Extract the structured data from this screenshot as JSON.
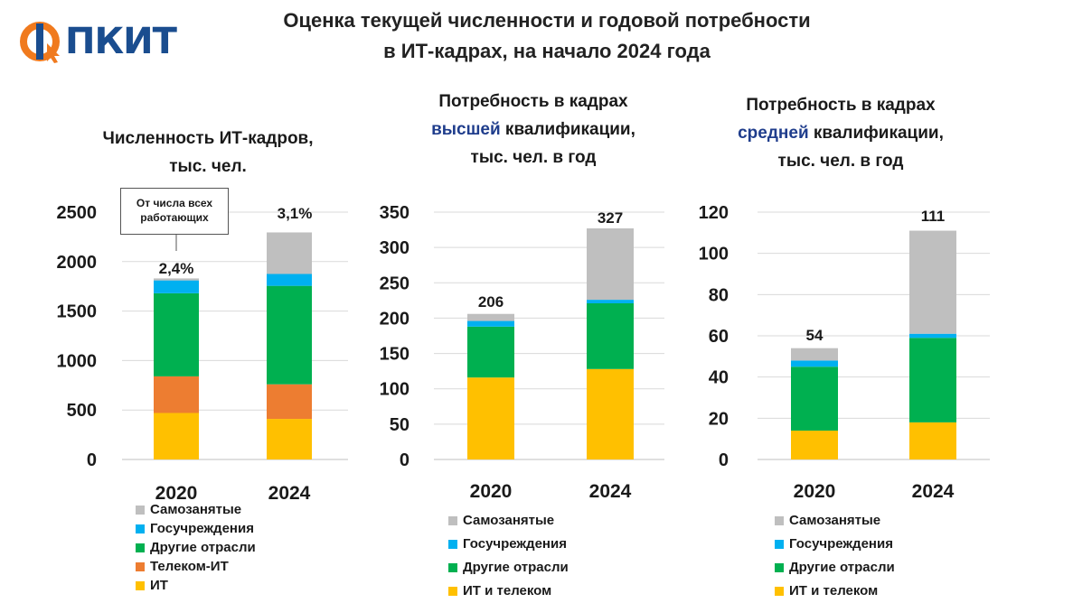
{
  "header": {
    "title_line1": "Оценка текущей численности и годовой потребности",
    "title_line2": "в ИТ-кадрах, на начало 2024 года",
    "logo_text": "ПКИТ"
  },
  "colors": {
    "it": "#FFC000",
    "telecom_it": "#ED7D31",
    "other": "#00B050",
    "gov": "#00B0F0",
    "self": "#BFBFBF",
    "accent": "#1f3d8c",
    "logo_orange": "#F07A1E"
  },
  "panels": {
    "p1": {
      "title_line1": "Численность ИТ-кадров,",
      "title_line2": "тыс. чел."
    },
    "p2": {
      "title_line1": "Потребность в кадрах",
      "title_accent": "высшей",
      "title_rest": " квалификации,",
      "title_line3": "тыс. чел. в год"
    },
    "p3": {
      "title_line1": "Потребность в кадрах",
      "title_accent": "средней",
      "title_rest": " квалификации,",
      "title_line3": "тыс. чел. в год"
    }
  },
  "callout": {
    "text": "От числа всех работающих"
  },
  "chart_data": [
    {
      "type": "bar",
      "stacked": true,
      "title": "Численность ИТ-кадров, тыс. чел.",
      "categories": [
        "2020",
        "2024"
      ],
      "ylim": [
        0,
        2500
      ],
      "yticks": [
        "0",
        "500",
        "1000",
        "1500",
        "2000",
        "2500"
      ],
      "series": [
        {
          "name": "ИТ",
          "color_key": "it",
          "values": [
            470,
            410
          ]
        },
        {
          "name": "Телеком-ИТ",
          "color_key": "telecom_it",
          "values": [
            370,
            350
          ]
        },
        {
          "name": "Другие отрасли",
          "color_key": "other",
          "values": [
            840,
            995
          ]
        },
        {
          "name": "Госучреждения",
          "color_key": "gov",
          "values": [
            130,
            120
          ]
        },
        {
          "name": "Самозанятые",
          "color_key": "self",
          "values": [
            20,
            420
          ]
        }
      ],
      "bar_labels": [
        "2,4%",
        "3,1%"
      ],
      "legend": [
        "Самозанятые",
        "Госучреждения",
        "Другие отрасли",
        "Телеком-ИТ",
        "ИТ"
      ],
      "legend_color_keys": [
        "self",
        "gov",
        "other",
        "telecom_it",
        "it"
      ]
    },
    {
      "type": "bar",
      "stacked": true,
      "title": "Потребность в кадрах высшей квалификации, тыс. чел. в год",
      "categories": [
        "2020",
        "2024"
      ],
      "ylim": [
        0,
        350
      ],
      "yticks": [
        "0",
        "50",
        "100",
        "150",
        "200",
        "250",
        "300",
        "350"
      ],
      "series": [
        {
          "name": "ИТ и телеком",
          "color_key": "it",
          "values": [
            116,
            128
          ]
        },
        {
          "name": "Другие отрасли",
          "color_key": "other",
          "values": [
            72,
            93
          ]
        },
        {
          "name": "Госучреждения",
          "color_key": "gov",
          "values": [
            8,
            5
          ]
        },
        {
          "name": "Самозанятые",
          "color_key": "self",
          "values": [
            10,
            101
          ]
        }
      ],
      "bar_labels": [
        "206",
        "327"
      ],
      "legend": [
        "Самозанятые",
        "Госучреждения",
        "Другие отрасли",
        "ИТ и телеком"
      ],
      "legend_color_keys": [
        "self",
        "gov",
        "other",
        "it"
      ]
    },
    {
      "type": "bar",
      "stacked": true,
      "title": "Потребность в кадрах средней квалификации, тыс. чел. в год",
      "categories": [
        "2020",
        "2024"
      ],
      "ylim": [
        0,
        120
      ],
      "yticks": [
        "0",
        "20",
        "40",
        "60",
        "80",
        "100",
        "120"
      ],
      "series": [
        {
          "name": "ИТ и телеком",
          "color_key": "it",
          "values": [
            14,
            18
          ]
        },
        {
          "name": "Другие отрасли",
          "color_key": "other",
          "values": [
            31,
            41
          ]
        },
        {
          "name": "Госучреждения",
          "color_key": "gov",
          "values": [
            3,
            2
          ]
        },
        {
          "name": "Самозанятые",
          "color_key": "self",
          "values": [
            6,
            50
          ]
        }
      ],
      "bar_labels": [
        "54",
        "111"
      ],
      "legend": [
        "Самозанятые",
        "Госучреждения",
        "Другие отрасли",
        "ИТ и телеком"
      ],
      "legend_color_keys": [
        "self",
        "gov",
        "other",
        "it"
      ]
    }
  ]
}
